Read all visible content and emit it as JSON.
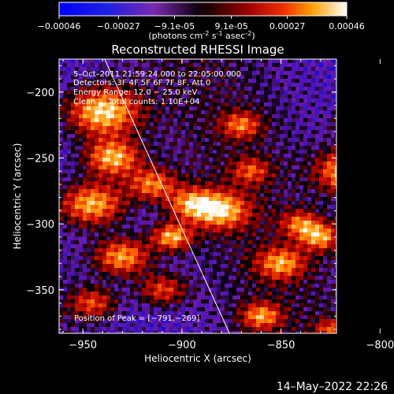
{
  "colorbar": {
    "ticks": [
      "-0.00046",
      "-0.00027",
      "-9.1e-05",
      "9.1e-05",
      "0.00027",
      "0.00046"
    ],
    "units": "(photons cm",
    "units_exp1": "-2",
    "units_mid": " s",
    "units_exp2": "-1",
    "units_end": " asec",
    "units_exp3": "-2",
    "units_close": ")"
  },
  "chart_data": {
    "type": "heatmap",
    "title": "Reconstructed RHESSI Image",
    "xlabel": "Heliocentric X (arcsec)",
    "ylabel": "Heliocentric Y (arcsec)",
    "xlim": [
      -962,
      -822
    ],
    "ylim": [
      -383,
      -175
    ],
    "xticks": [
      -950,
      -900,
      -850,
      -800
    ],
    "xtick_labels": [
      "−950",
      "−900",
      "−850",
      "−800"
    ],
    "yticks": [
      -200,
      -250,
      -300,
      -350
    ],
    "ytick_labels": [
      "−200",
      "−250",
      "−300",
      "−350"
    ],
    "value_range": [
      -0.00046,
      0.00046
    ],
    "colormap": [
      "#0000ff",
      "#3010c0",
      "#6a1ab0",
      "#000000",
      "#8a0000",
      "#d01000",
      "#ff6000",
      "#ffb020",
      "#ffffff"
    ],
    "limb_line": [
      [
        -939,
        -175
      ],
      [
        -876,
        -383
      ]
    ],
    "peak": [
      -791,
      -269
    ],
    "annotations": {
      "time": "5–Oct–2011 21:59:24.000 to 22:05:00.000",
      "detectors": "Detectors: 3F 4F 5F 6F 7F 8F, Att 0",
      "energy": "Energy Range: 12.0 − 25.0 keV",
      "clean": "Clean     Total counts: 1.10E+04",
      "peak_text": "Position of Peak = [−791,−269]"
    }
  },
  "footer": {
    "date": "14–May–2022 22:26"
  }
}
